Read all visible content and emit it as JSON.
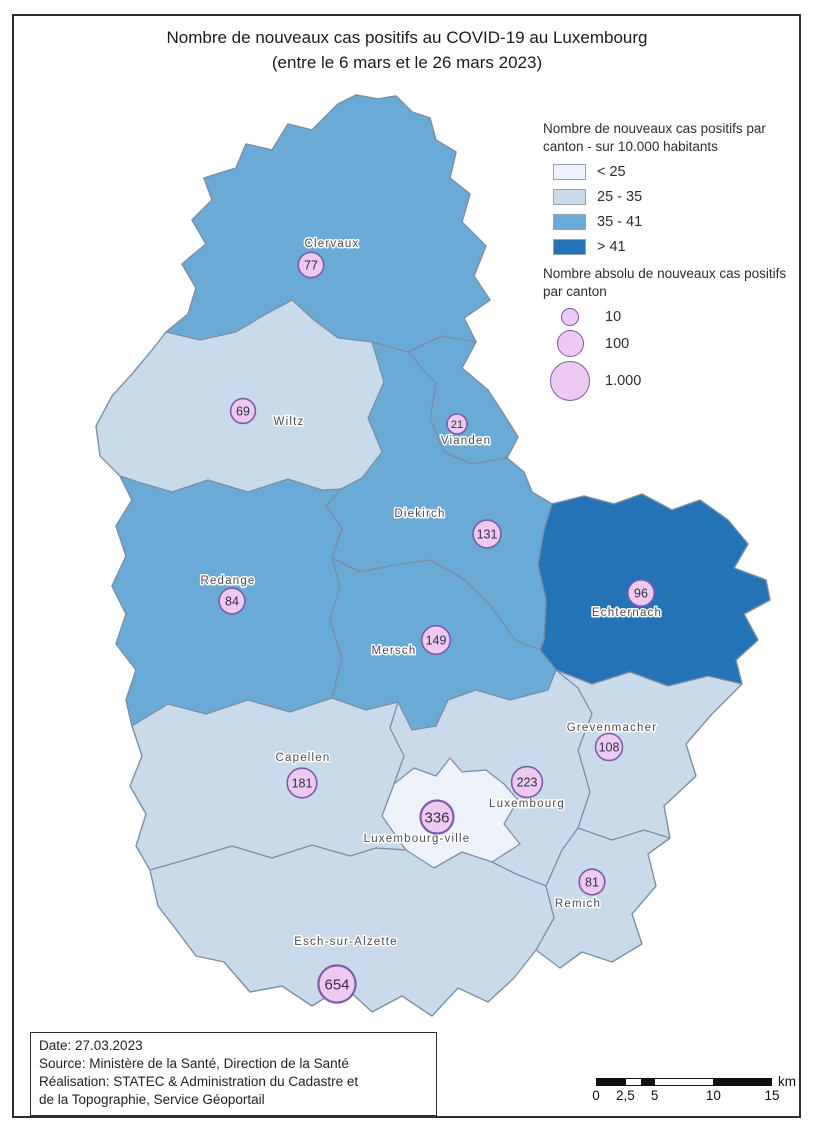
{
  "title": {
    "line1": "Nombre de nouveaux cas positifs au COVID-19 au Luxembourg",
    "line2": "(entre le 6 mars et le 26 mars 2023)"
  },
  "legend": {
    "choropleth_title": "Nombre de nouveaux cas positifs par canton - sur 10.000 habitants",
    "classes": [
      {
        "label": "< 25",
        "color": "#eef2fb"
      },
      {
        "label": "25 - 35",
        "color": "#c9dbeb"
      },
      {
        "label": "35 - 41",
        "color": "#69aad6"
      },
      {
        "label": "> 41",
        "color": "#2473b7"
      }
    ],
    "circles_title": "Nombre absolu de nouveaux cas positifs par canton",
    "circle_sizes": [
      {
        "label": "10",
        "value": 10
      },
      {
        "label": "100",
        "value": 100
      },
      {
        "label": "1.000",
        "value": 1000
      }
    ]
  },
  "map": {
    "cantons": [
      {
        "name": "Clervaux",
        "cases": 77,
        "rate_class": 2
      },
      {
        "name": "Wiltz",
        "cases": 69,
        "rate_class": 1
      },
      {
        "name": "Vianden",
        "cases": 21,
        "rate_class": 2
      },
      {
        "name": "Diekirch",
        "cases": 131,
        "rate_class": 2
      },
      {
        "name": "Redange",
        "cases": 84,
        "rate_class": 2
      },
      {
        "name": "Mersch",
        "cases": 149,
        "rate_class": 2
      },
      {
        "name": "Echternach",
        "cases": 96,
        "rate_class": 3
      },
      {
        "name": "Grevenmacher",
        "cases": 108,
        "rate_class": 1
      },
      {
        "name": "Capellen",
        "cases": 181,
        "rate_class": 1
      },
      {
        "name": "Luxembourg",
        "cases": 223,
        "rate_class": 1
      },
      {
        "name": "Luxembourg-ville",
        "cases": 336,
        "rate_class": 0
      },
      {
        "name": "Remich",
        "cases": 81,
        "rate_class": 1
      },
      {
        "name": "Esch-sur-Alzette",
        "cases": 654,
        "rate_class": 1
      }
    ],
    "colors": {
      "circle_fill": "#eecaf2",
      "circle_stroke": "#7b5ca6",
      "boundary_stroke": "#7d8ea3",
      "label_color": "#4b4b56",
      "number_color": "#31313b"
    }
  },
  "footer": {
    "lines": [
      "Date: 27.03.2023",
      "Source: Ministère de la Santé, Direction de la Santé",
      "Réalisation: STATEC & Administration du Cadastre et",
      "de la Topographie, Service Géoportail"
    ]
  },
  "scalebar": {
    "ticks": [
      "0",
      "2,5",
      "5",
      "10",
      "15"
    ],
    "tick_values": [
      0,
      2.5,
      5,
      10,
      15
    ],
    "max_km": 15,
    "unit": "km"
  }
}
